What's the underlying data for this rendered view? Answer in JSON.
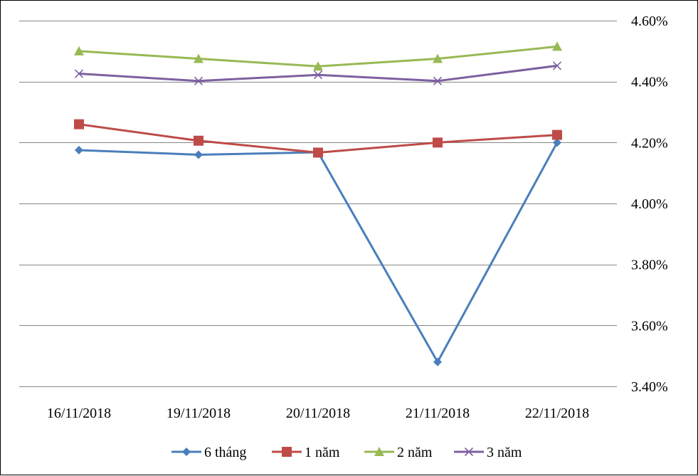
{
  "chart_data": {
    "type": "line",
    "title": "",
    "xlabel": "",
    "ylabel": "",
    "categories": [
      "16/11/2018",
      "19/11/2018",
      "20/11/2018",
      "21/11/2018",
      "22/11/2018"
    ],
    "ylim": [
      3.4,
      4.6
    ],
    "yticks": [
      3.4,
      3.6,
      3.8,
      4.0,
      4.2,
      4.4,
      4.6
    ],
    "ytick_labels": [
      "3.40%",
      "3.60%",
      "3.80%",
      "4.00%",
      "4.20%",
      "4.40%",
      "4.60%"
    ],
    "y_axis_side": "right",
    "grid": true,
    "legend_position": "bottom",
    "series": [
      {
        "name": "6 tháng",
        "color": "#4a7ebb",
        "marker": "diamond",
        "values": [
          4.175,
          4.16,
          4.168,
          3.48,
          4.2
        ]
      },
      {
        "name": "1 năm",
        "color": "#be4b48",
        "marker": "square",
        "values": [
          4.26,
          4.206,
          4.167,
          4.2,
          4.225
        ]
      },
      {
        "name": "2 năm",
        "color": "#98b954",
        "marker": "triangle",
        "values": [
          4.5,
          4.475,
          4.45,
          4.475,
          4.515
        ]
      },
      {
        "name": "3 năm",
        "color": "#7d60a0",
        "marker": "x",
        "values": [
          4.426,
          4.402,
          4.422,
          4.402,
          4.452
        ]
      }
    ]
  }
}
